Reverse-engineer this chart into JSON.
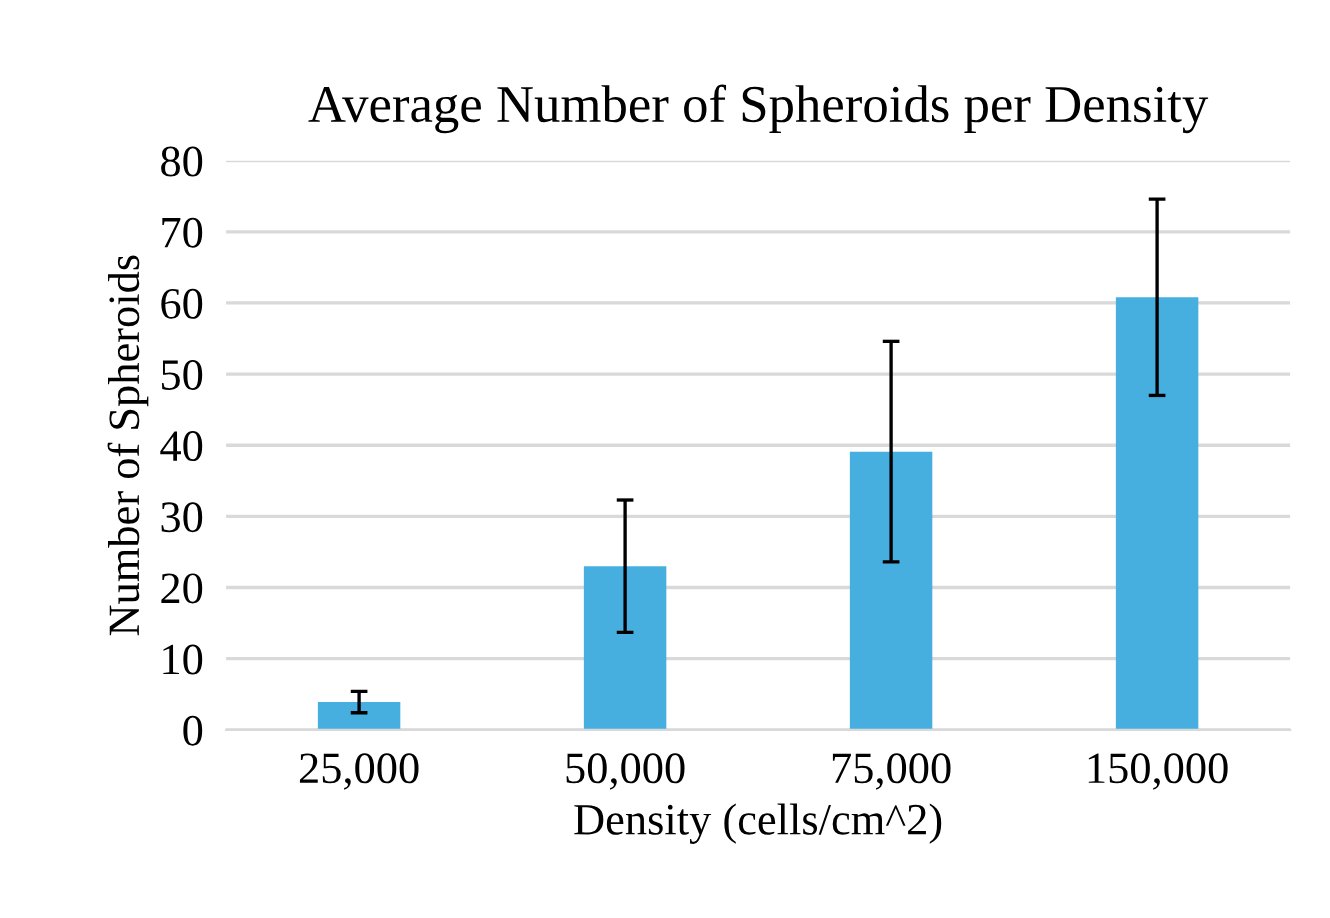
{
  "chart_data": {
    "type": "bar",
    "title": "Average Number of Spheroids per Density",
    "xlabel": "Density (cells/cm^2)",
    "ylabel": "Number of Spheroids",
    "categories": [
      "25,000",
      "50,000",
      "75,000",
      "150,000"
    ],
    "values": [
      3.9,
      23.0,
      39.1,
      60.8
    ],
    "errors": [
      1.5,
      9.3,
      15.5,
      13.8
    ],
    "color": "#46afe0",
    "ylim": [
      0,
      80
    ],
    "yticks": [
      0,
      10,
      20,
      30,
      40,
      50,
      60,
      70,
      80
    ],
    "grid": "y"
  }
}
